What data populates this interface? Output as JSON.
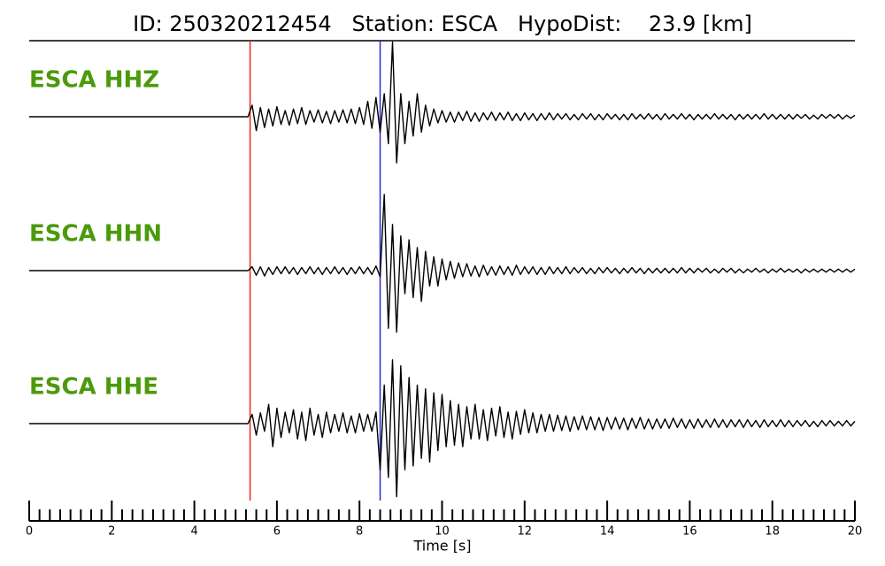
{
  "chart_data": {
    "type": "line",
    "title": "ID: 250320212454   Station: ESCA   HypoDist:    23.9 [km]",
    "xlabel": "Time [s]",
    "xlim": [
      0,
      20
    ],
    "xticks": [
      0,
      2,
      4,
      6,
      8,
      10,
      12,
      14,
      16,
      18,
      20
    ],
    "xminorticks": [
      0.25,
      0.5,
      0.75,
      1,
      1.25,
      1.5,
      1.75,
      2.25,
      2.5,
      2.75,
      3,
      3.25,
      3.5,
      3.75,
      4.25,
      4.5,
      4.75,
      5,
      5.25,
      5.5,
      5.75,
      6.25,
      6.5,
      6.75,
      7,
      7.25,
      7.5,
      7.75,
      8.25,
      8.5,
      8.75,
      9,
      9.25,
      9.5,
      9.75,
      10.25,
      10.5,
      10.75,
      11,
      11.25,
      11.5,
      11.75,
      12.25,
      12.5,
      12.75,
      13,
      13.25,
      13.5,
      13.75,
      14.25,
      14.5,
      14.75,
      15,
      15.25,
      15.5,
      15.75,
      16.25,
      16.5,
      16.75,
      17,
      17.25,
      17.5,
      17.75,
      18.25,
      18.5,
      18.75,
      19,
      19.25,
      19.5,
      19.75
    ],
    "ylim": [
      -1,
      1
    ],
    "label_color": "#4c9a0c",
    "picks": [
      {
        "value": 5.35,
        "color": "#e8281e"
      },
      {
        "value": 8.5,
        "color": "#2a2ac8"
      }
    ],
    "x": [
      0,
      0.1,
      0.2,
      0.3,
      0.4,
      0.5,
      0.6,
      0.7,
      0.8,
      0.9,
      1,
      1.1,
      1.2,
      1.3,
      1.4,
      1.5,
      1.6,
      1.7,
      1.8,
      1.9,
      2,
      2.1,
      2.2,
      2.3,
      2.4,
      2.5,
      2.6,
      2.7,
      2.8,
      2.9,
      3,
      3.1,
      3.2,
      3.3,
      3.4,
      3.5,
      3.6,
      3.7,
      3.8,
      3.9,
      4,
      4.1,
      4.2,
      4.3,
      4.4,
      4.5,
      4.6,
      4.7,
      4.8,
      4.9,
      5,
      5.1,
      5.2,
      5.3,
      5.4,
      5.5,
      5.6,
      5.7,
      5.8,
      5.9,
      6,
      6.1,
      6.2,
      6.3,
      6.4,
      6.5,
      6.6,
      6.7,
      6.8,
      6.9,
      7,
      7.1,
      7.2,
      7.3,
      7.4,
      7.5,
      7.6,
      7.7,
      7.8,
      7.9,
      8,
      8.1,
      8.2,
      8.3,
      8.4,
      8.5,
      8.6,
      8.7,
      8.8,
      8.9,
      9,
      9.1,
      9.2,
      9.3,
      9.4,
      9.5,
      9.6,
      9.7,
      9.8,
      9.9,
      10,
      10.1,
      10.2,
      10.3,
      10.4,
      10.5,
      10.6,
      10.7,
      10.8,
      10.9,
      11,
      11.1,
      11.2,
      11.3,
      11.4,
      11.5,
      11.6,
      11.7,
      11.8,
      11.9,
      12,
      12.1,
      12.2,
      12.3,
      12.4,
      12.5,
      12.6,
      12.7,
      12.8,
      12.9,
      13,
      13.1,
      13.2,
      13.3,
      13.4,
      13.5,
      13.6,
      13.7,
      13.8,
      13.9,
      14,
      14.1,
      14.2,
      14.3,
      14.4,
      14.5,
      14.6,
      14.7,
      14.8,
      14.9,
      15,
      15.1,
      15.2,
      15.3,
      15.4,
      15.5,
      15.6,
      15.7,
      15.8,
      15.9,
      16,
      16.1,
      16.2,
      16.3,
      16.4,
      16.5,
      16.6,
      16.7,
      16.8,
      16.9,
      17,
      17.1,
      17.2,
      17.3,
      17.4,
      17.5,
      17.6,
      17.7,
      17.8,
      17.9,
      18,
      18.1,
      18.2,
      18.3,
      18.4,
      18.5,
      18.6,
      18.7,
      18.8,
      18.9,
      19,
      19.1,
      19.2,
      19.3,
      19.4,
      19.5,
      19.6,
      19.7,
      19.8,
      19.9,
      20
    ],
    "series": [
      {
        "name": "ESCA HHZ",
        "color": "#000000",
        "values": [
          0,
          0,
          0,
          0,
          0,
          0,
          0,
          0,
          0,
          0,
          0,
          0,
          0,
          0,
          0,
          0,
          0,
          0,
          0,
          0,
          0,
          0,
          0,
          0,
          0,
          0,
          0,
          0,
          0,
          0,
          0,
          0,
          0,
          0,
          0,
          0,
          0,
          0,
          0,
          0,
          0,
          0,
          0,
          0,
          0,
          0,
          0,
          0,
          0,
          0,
          0,
          0,
          0,
          0,
          0.15,
          -0.18,
          0.12,
          -0.14,
          0.1,
          -0.12,
          0.13,
          -0.1,
          0.08,
          -0.11,
          0.1,
          -0.09,
          0.12,
          -0.1,
          0.08,
          -0.07,
          0.09,
          -0.08,
          0.07,
          -0.09,
          0.08,
          -0.07,
          0.09,
          -0.08,
          0.1,
          -0.09,
          0.12,
          -0.1,
          0.2,
          -0.15,
          0.25,
          -0.2,
          0.3,
          -0.35,
          0.97,
          -0.6,
          0.3,
          -0.35,
          0.2,
          -0.25,
          0.3,
          -0.2,
          0.15,
          -0.12,
          0.1,
          -0.08,
          0.08,
          -0.07,
          0.06,
          -0.07,
          0.06,
          -0.05,
          0.07,
          -0.06,
          0.05,
          -0.06,
          0.05,
          -0.04,
          0.06,
          -0.05,
          0.05,
          -0.04,
          0.06,
          -0.05,
          0.04,
          -0.05,
          0.05,
          -0.04,
          0.04,
          -0.05,
          0.04,
          -0.04,
          0.05,
          -0.04,
          0.04,
          -0.03,
          0.04,
          -0.04,
          0.03,
          -0.04,
          0.04,
          -0.03,
          0.04,
          -0.04,
          0.03,
          -0.04,
          0.04,
          -0.03,
          0.03,
          -0.04,
          0.03,
          -0.04,
          0.04,
          -0.03,
          0.03,
          -0.03,
          0.04,
          -0.03,
          0.03,
          -0.04,
          0.04,
          -0.03,
          0.03,
          -0.03,
          0.04,
          -0.03,
          0.03,
          -0.04,
          0.03,
          -0.03,
          0.03,
          -0.03,
          0.04,
          -0.03,
          0.03,
          -0.03,
          0.03,
          -0.04,
          0.03,
          -0.03,
          0.03,
          -0.03,
          0.03,
          -0.03,
          0.04,
          -0.03,
          0.03,
          -0.03,
          0.03,
          -0.03,
          0.03,
          -0.03,
          0.03,
          -0.02,
          0.03,
          -0.03,
          0.02,
          -0.03,
          0.03,
          -0.02,
          0.03,
          -0.02,
          0.03,
          -0.03,
          0.02,
          -0.02,
          0.02
        ]
      },
      {
        "name": "ESCA HHN",
        "color": "#000000",
        "values": [
          0,
          0,
          0,
          0,
          0,
          0,
          0,
          0,
          0,
          0,
          0,
          0,
          0,
          0,
          0,
          0,
          0,
          0,
          0,
          0,
          0,
          0,
          0,
          0,
          0,
          0,
          0,
          0,
          0,
          0,
          0,
          0,
          0,
          0,
          0,
          0,
          0,
          0,
          0,
          0,
          0,
          0,
          0,
          0,
          0,
          0,
          0,
          0,
          0,
          0,
          0,
          0,
          0,
          0,
          0.05,
          -0.06,
          0.05,
          -0.07,
          0.04,
          -0.05,
          0.05,
          -0.04,
          0.05,
          -0.04,
          0.04,
          -0.05,
          0.04,
          -0.04,
          0.05,
          -0.04,
          0.04,
          -0.05,
          0.04,
          -0.04,
          0.05,
          -0.04,
          0.04,
          -0.05,
          0.04,
          -0.04,
          0.05,
          -0.04,
          0.04,
          -0.05,
          0.06,
          -0.08,
          0.99,
          -0.75,
          0.6,
          -0.8,
          0.45,
          -0.3,
          0.4,
          -0.35,
          0.3,
          -0.4,
          0.25,
          -0.2,
          0.18,
          -0.2,
          0.15,
          -0.12,
          0.12,
          -0.1,
          0.1,
          -0.08,
          0.09,
          -0.07,
          0.06,
          -0.08,
          0.07,
          -0.06,
          0.05,
          -0.06,
          0.06,
          -0.05,
          0.05,
          -0.06,
          0.07,
          -0.05,
          0.05,
          -0.04,
          0.05,
          -0.05,
          0.04,
          -0.05,
          0.05,
          -0.04,
          0.04,
          -0.04,
          0.05,
          -0.04,
          0.04,
          -0.03,
          0.04,
          -0.04,
          0.03,
          -0.04,
          0.04,
          -0.03,
          0.04,
          -0.03,
          0.03,
          -0.04,
          0.03,
          -0.03,
          0.04,
          -0.03,
          0.03,
          -0.04,
          0.03,
          -0.03,
          0.03,
          -0.03,
          0.03,
          -0.03,
          0.03,
          -0.03,
          0.04,
          -0.03,
          0.03,
          -0.03,
          0.03,
          -0.02,
          0.03,
          -0.03,
          0.02,
          -0.03,
          0.03,
          -0.02,
          0.03,
          -0.03,
          0.02,
          -0.03,
          0.02,
          -0.02,
          0.03,
          -0.02,
          0.02,
          -0.03,
          0.02,
          -0.02,
          0.03,
          -0.02,
          0.02,
          -0.02,
          0.02,
          -0.03,
          0.02,
          -0.02,
          0.02,
          -0.02,
          0.02,
          -0.02,
          0.02,
          -0.02,
          0.02,
          -0.02,
          0.02,
          -0.02,
          0.02
        ]
      },
      {
        "name": "ESCA HHE",
        "color": "#000000",
        "values": [
          0,
          0,
          0,
          0,
          0,
          0,
          0,
          0,
          0,
          0,
          0,
          0,
          0,
          0,
          0,
          0,
          0,
          0,
          0,
          0,
          0,
          0,
          0,
          0,
          0,
          0,
          0,
          0,
          0,
          0,
          0,
          0,
          0,
          0,
          0,
          0,
          0,
          0,
          0,
          0,
          0,
          0,
          0,
          0,
          0,
          0,
          0,
          0,
          0,
          0,
          0,
          0,
          0,
          0,
          0.12,
          -0.15,
          0.14,
          -0.1,
          0.25,
          -0.3,
          0.2,
          -0.18,
          0.15,
          -0.12,
          0.18,
          -0.2,
          0.15,
          -0.22,
          0.2,
          -0.15,
          0.12,
          -0.18,
          0.15,
          -0.12,
          0.12,
          -0.1,
          0.14,
          -0.12,
          0.1,
          -0.12,
          0.13,
          -0.1,
          0.12,
          -0.1,
          0.15,
          -0.6,
          0.5,
          -0.7,
          0.83,
          -0.95,
          0.75,
          -0.6,
          0.6,
          -0.55,
          0.5,
          -0.45,
          0.45,
          -0.5,
          0.4,
          -0.35,
          0.38,
          -0.3,
          0.3,
          -0.28,
          0.25,
          -0.3,
          0.22,
          -0.2,
          0.25,
          -0.2,
          0.18,
          -0.22,
          0.2,
          -0.16,
          0.22,
          -0.18,
          0.15,
          -0.2,
          0.16,
          -0.14,
          0.18,
          -0.12,
          0.14,
          -0.12,
          0.12,
          -0.1,
          0.12,
          -0.1,
          0.11,
          -0.09,
          0.1,
          -0.1,
          0.09,
          -0.08,
          0.1,
          -0.08,
          0.09,
          -0.08,
          0.08,
          -0.09,
          0.08,
          -0.07,
          0.08,
          -0.07,
          0.07,
          -0.08,
          0.07,
          -0.06,
          0.08,
          -0.07,
          0.06,
          -0.07,
          0.06,
          -0.06,
          0.06,
          -0.06,
          0.07,
          -0.05,
          0.06,
          -0.06,
          0.05,
          -0.06,
          0.06,
          -0.05,
          0.05,
          -0.05,
          0.06,
          -0.05,
          0.05,
          -0.05,
          0.05,
          -0.04,
          0.05,
          -0.05,
          0.05,
          -0.04,
          0.04,
          -0.05,
          0.05,
          -0.04,
          0.04,
          -0.04,
          0.05,
          -0.04,
          0.04,
          -0.04,
          0.04,
          -0.03,
          0.04,
          -0.04,
          0.03,
          -0.04,
          0.04,
          -0.03,
          0.04,
          -0.03,
          0.03,
          -0.03,
          0.04,
          -0.03,
          0.03
        ]
      }
    ]
  }
}
